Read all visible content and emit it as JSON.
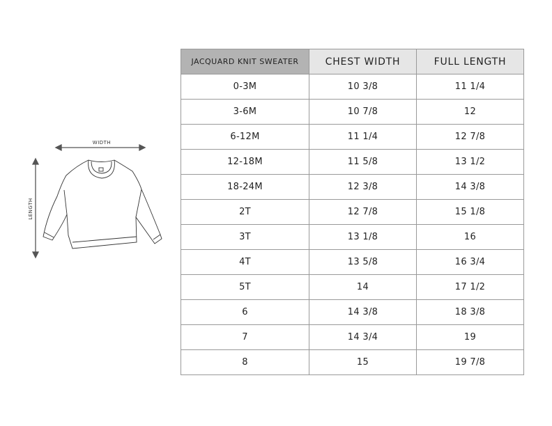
{
  "diagram": {
    "width_label": "WIDTH",
    "length_label": "LENGTH"
  },
  "table": {
    "headers": [
      "JACQUARD KNIT SWEATER",
      "CHEST WIDTH",
      "FULL LENGTH"
    ],
    "rows": [
      [
        "0-3M",
        "10 3/8",
        "11 1/4"
      ],
      [
        "3-6M",
        "10 7/8",
        "12"
      ],
      [
        "6-12M",
        "11 1/4",
        "12 7/8"
      ],
      [
        "12-18M",
        "11 5/8",
        "13 1/2"
      ],
      [
        "18-24M",
        "12 3/8",
        "14 3/8"
      ],
      [
        "2T",
        "12 7/8",
        "15 1/8"
      ],
      [
        "3T",
        "13 1/8",
        "16"
      ],
      [
        "4T",
        "13 5/8",
        "16 3/4"
      ],
      [
        "5T",
        "14",
        "17 1/2"
      ],
      [
        "6",
        "14 3/8",
        "18 3/8"
      ],
      [
        "7",
        "14 3/4",
        "19"
      ],
      [
        "8",
        "15",
        "19 7/8"
      ]
    ]
  }
}
